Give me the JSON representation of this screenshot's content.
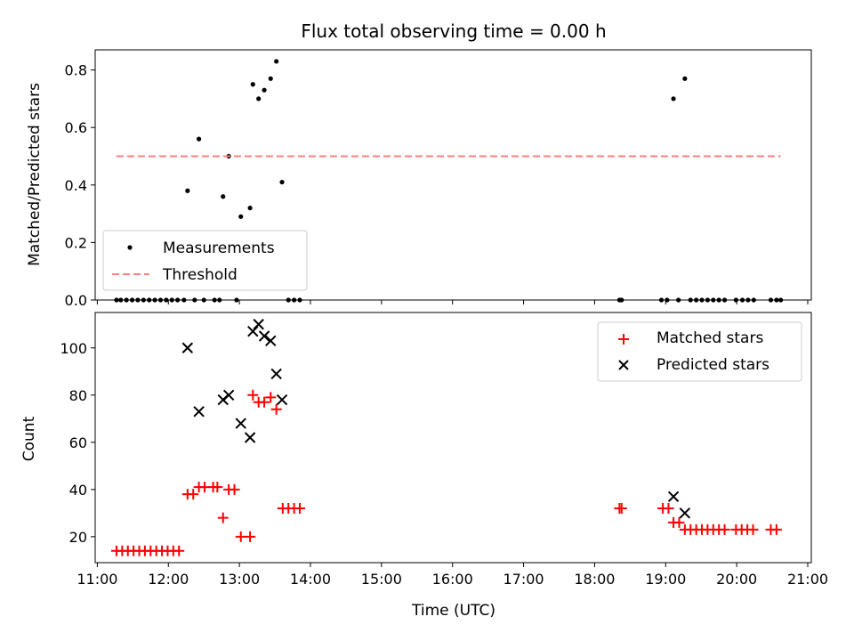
{
  "chart_data": {
    "type": "scatter",
    "title": "Flux total observing time = 0.00 h",
    "xlabel": "Time (UTC)",
    "x_ticks": [
      "11:00",
      "12:00",
      "13:00",
      "14:00",
      "15:00",
      "16:00",
      "17:00",
      "18:00",
      "19:00",
      "20:00",
      "21:00"
    ],
    "xlim": [
      10.97,
      21.05
    ],
    "panels": [
      {
        "ylabel": "Matched/Predicted stars",
        "ylim": [
          0,
          0.87
        ],
        "y_ticks": [
          0.0,
          0.2,
          0.4,
          0.6,
          0.8
        ],
        "y_tick_labels": [
          "0.0",
          "0.2",
          "0.4",
          "0.6",
          "0.8"
        ],
        "legend_position": "lower-left",
        "series": [
          {
            "name": "Measurements",
            "marker": "dot",
            "color": "#000000",
            "points": [
              [
                11.27,
                0
              ],
              [
                11.33,
                0
              ],
              [
                11.41,
                0
              ],
              [
                11.49,
                0
              ],
              [
                11.57,
                0
              ],
              [
                11.65,
                0
              ],
              [
                11.73,
                0
              ],
              [
                11.81,
                0
              ],
              [
                11.89,
                0
              ],
              [
                11.97,
                0
              ],
              [
                12.05,
                0
              ],
              [
                12.13,
                0
              ],
              [
                12.22,
                0
              ],
              [
                12.37,
                0
              ],
              [
                12.5,
                0
              ],
              [
                12.65,
                0
              ],
              [
                12.72,
                0
              ],
              [
                12.96,
                0
              ],
              [
                13.69,
                0
              ],
              [
                13.77,
                0
              ],
              [
                13.85,
                0
              ],
              [
                12.27,
                0.38
              ],
              [
                12.43,
                0.56
              ],
              [
                12.77,
                0.36
              ],
              [
                12.85,
                0.5
              ],
              [
                13.02,
                0.29
              ],
              [
                13.15,
                0.32
              ],
              [
                13.19,
                0.75
              ],
              [
                13.27,
                0.7
              ],
              [
                13.35,
                0.73
              ],
              [
                13.44,
                0.77
              ],
              [
                13.52,
                0.83
              ],
              [
                13.6,
                0.41
              ],
              [
                18.35,
                0
              ],
              [
                18.38,
                0
              ],
              [
                18.94,
                0
              ],
              [
                19.02,
                0
              ],
              [
                19.11,
                0.7
              ],
              [
                19.18,
                0
              ],
              [
                19.27,
                0.77
              ],
              [
                19.35,
                0
              ],
              [
                19.43,
                0
              ],
              [
                19.51,
                0
              ],
              [
                19.59,
                0
              ],
              [
                19.67,
                0
              ],
              [
                19.75,
                0
              ],
              [
                19.83,
                0
              ],
              [
                19.99,
                0
              ],
              [
                20.08,
                0
              ],
              [
                20.16,
                0
              ],
              [
                20.24,
                0
              ],
              [
                20.48,
                0
              ],
              [
                20.56,
                0
              ],
              [
                20.62,
                0
              ]
            ]
          },
          {
            "name": "Threshold",
            "marker": "dashed-line",
            "color": "#ff7f7f",
            "x": [
              11.27,
              20.62
            ],
            "y": [
              0.5,
              0.5
            ]
          }
        ]
      },
      {
        "ylabel": "Count",
        "ylim": [
          9,
          115
        ],
        "y_ticks": [
          20,
          40,
          60,
          80,
          100
        ],
        "y_tick_labels": [
          "20",
          "40",
          "60",
          "80",
          "100"
        ],
        "legend_position": "upper-right",
        "series": [
          {
            "name": "Matched stars",
            "marker": "plus",
            "color": "#ff0000",
            "points": [
              [
                11.27,
                14
              ],
              [
                11.35,
                14
              ],
              [
                11.43,
                14
              ],
              [
                11.51,
                14
              ],
              [
                11.59,
                14
              ],
              [
                11.67,
                14
              ],
              [
                11.75,
                14
              ],
              [
                11.83,
                14
              ],
              [
                11.91,
                14
              ],
              [
                11.99,
                14
              ],
              [
                12.07,
                14
              ],
              [
                12.15,
                14
              ],
              [
                12.27,
                38
              ],
              [
                12.35,
                38
              ],
              [
                12.43,
                41
              ],
              [
                12.51,
                41
              ],
              [
                12.63,
                41
              ],
              [
                12.69,
                41
              ],
              [
                12.77,
                28
              ],
              [
                12.85,
                40
              ],
              [
                12.93,
                40
              ],
              [
                13.02,
                20
              ],
              [
                13.15,
                20
              ],
              [
                13.19,
                80
              ],
              [
                13.27,
                77
              ],
              [
                13.35,
                77
              ],
              [
                13.44,
                79
              ],
              [
                13.52,
                74
              ],
              [
                13.61,
                32
              ],
              [
                13.69,
                32
              ],
              [
                13.77,
                32
              ],
              [
                13.85,
                32
              ],
              [
                18.35,
                32
              ],
              [
                18.38,
                32
              ],
              [
                18.96,
                32
              ],
              [
                19.04,
                32
              ],
              [
                19.11,
                26
              ],
              [
                19.19,
                26
              ],
              [
                19.27,
                23
              ],
              [
                19.35,
                23
              ],
              [
                19.43,
                23
              ],
              [
                19.51,
                23
              ],
              [
                19.59,
                23
              ],
              [
                19.67,
                23
              ],
              [
                19.75,
                23
              ],
              [
                19.83,
                23
              ],
              [
                19.99,
                23
              ],
              [
                20.07,
                23
              ],
              [
                20.15,
                23
              ],
              [
                20.23,
                23
              ],
              [
                20.48,
                23
              ],
              [
                20.56,
                23
              ]
            ]
          },
          {
            "name": "Predicted stars",
            "marker": "x",
            "color": "#000000",
            "points": [
              [
                12.27,
                100
              ],
              [
                12.43,
                73
              ],
              [
                12.77,
                78
              ],
              [
                12.85,
                80
              ],
              [
                13.02,
                68
              ],
              [
                13.15,
                62
              ],
              [
                13.19,
                107
              ],
              [
                13.27,
                110
              ],
              [
                13.35,
                105
              ],
              [
                13.44,
                103
              ],
              [
                13.52,
                89
              ],
              [
                13.6,
                78
              ],
              [
                19.11,
                37
              ],
              [
                19.27,
                30
              ]
            ]
          }
        ]
      }
    ]
  }
}
